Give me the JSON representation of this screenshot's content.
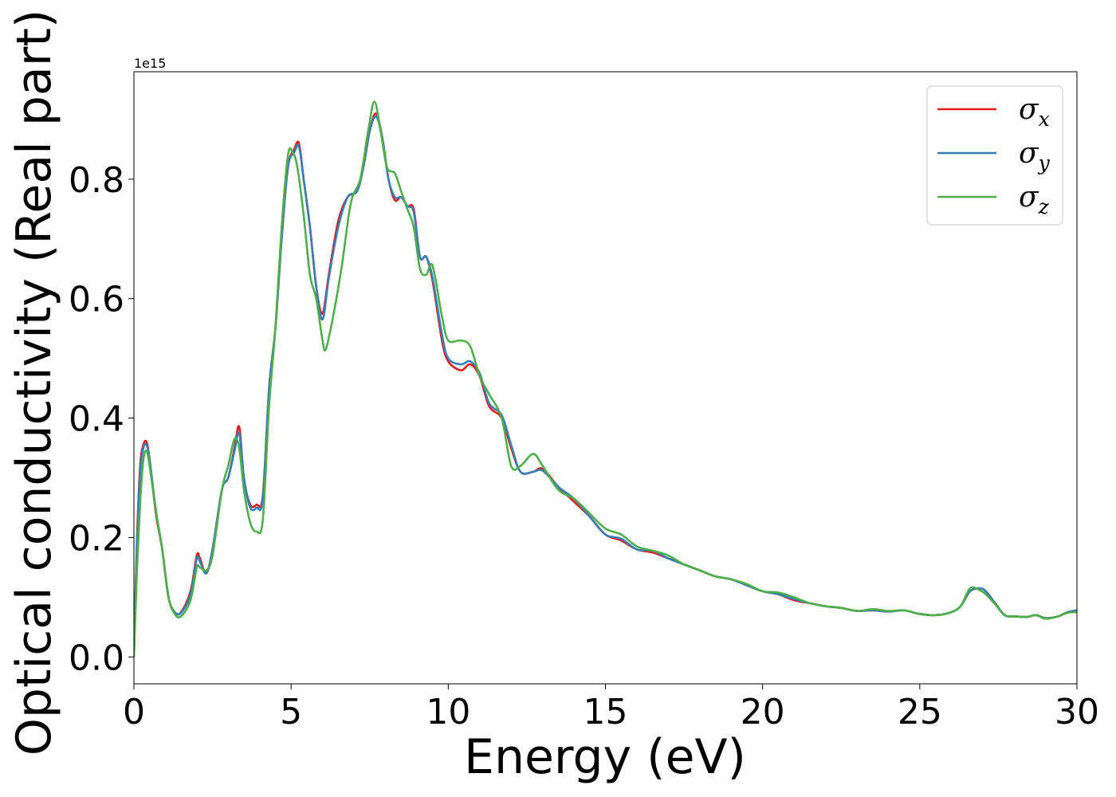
{
  "chart_data": {
    "type": "line",
    "xlabel": "Energy (eV)",
    "ylabel": "Optical conductivity (Real part)",
    "y_offset_label": "1e15",
    "xlim": [
      0,
      30
    ],
    "ylim": [
      -0.045,
      0.98
    ],
    "x_ticks": [
      0,
      5,
      10,
      15,
      20,
      25,
      30
    ],
    "x_tick_labels": [
      "0",
      "5",
      "10",
      "15",
      "20",
      "25",
      "30"
    ],
    "y_ticks": [
      0.0,
      0.2,
      0.4,
      0.6,
      0.8
    ],
    "y_tick_labels": [
      "0.0",
      "0.2",
      "0.4",
      "0.6",
      "0.8"
    ],
    "grid": false,
    "legend_position": "top-right",
    "series": [
      {
        "name": "σx",
        "legend_base": "σ",
        "legend_sub": "x",
        "color": "#e41a1c",
        "x": [
          0,
          0.1,
          0.2,
          0.3,
          0.4,
          0.5,
          0.7,
          0.9,
          1.1,
          1.3,
          1.5,
          1.8,
          2.0,
          2.1,
          2.3,
          2.5,
          2.8,
          3.0,
          3.2,
          3.35,
          3.5,
          3.7,
          3.9,
          4.1,
          4.3,
          4.5,
          4.7,
          4.9,
          5.1,
          5.25,
          5.4,
          5.6,
          5.8,
          6.0,
          6.2,
          6.5,
          6.8,
          7.1,
          7.3,
          7.5,
          7.7,
          7.9,
          8.1,
          8.3,
          8.5,
          8.7,
          8.9,
          9.1,
          9.3,
          9.5,
          9.8,
          10.0,
          10.4,
          10.7,
          11.0,
          11.3,
          11.7,
          12.0,
          12.3,
          12.7,
          13.0,
          13.5,
          14.0,
          14.5,
          15.0,
          15.5,
          16.0,
          16.5,
          17.0,
          17.5,
          18.0,
          18.5,
          19.0,
          19.5,
          20.0,
          20.5,
          21.0,
          21.5,
          22.0,
          22.5,
          23.0,
          23.5,
          24.0,
          24.5,
          25.0,
          25.5,
          26.0,
          26.3,
          26.6,
          26.9,
          27.1,
          27.4,
          27.7,
          28.0,
          28.4,
          28.7,
          29.0,
          29.4,
          29.7,
          30.0
        ],
        "values": [
          0.0,
          0.2,
          0.32,
          0.355,
          0.36,
          0.33,
          0.24,
          0.18,
          0.1,
          0.075,
          0.075,
          0.11,
          0.17,
          0.165,
          0.14,
          0.18,
          0.28,
          0.3,
          0.35,
          0.385,
          0.3,
          0.255,
          0.255,
          0.27,
          0.45,
          0.55,
          0.7,
          0.82,
          0.85,
          0.86,
          0.8,
          0.72,
          0.62,
          0.575,
          0.64,
          0.73,
          0.77,
          0.78,
          0.82,
          0.88,
          0.91,
          0.87,
          0.8,
          0.765,
          0.77,
          0.755,
          0.75,
          0.67,
          0.67,
          0.63,
          0.53,
          0.495,
          0.48,
          0.49,
          0.47,
          0.42,
          0.4,
          0.35,
          0.31,
          0.31,
          0.315,
          0.285,
          0.26,
          0.235,
          0.205,
          0.195,
          0.18,
          0.175,
          0.165,
          0.155,
          0.145,
          0.135,
          0.13,
          0.12,
          0.11,
          0.105,
          0.095,
          0.09,
          0.085,
          0.082,
          0.077,
          0.078,
          0.076,
          0.078,
          0.072,
          0.07,
          0.075,
          0.085,
          0.11,
          0.115,
          0.11,
          0.09,
          0.07,
          0.068,
          0.067,
          0.07,
          0.065,
          0.068,
          0.075,
          0.078
        ]
      },
      {
        "name": "σy",
        "legend_base": "σ",
        "legend_sub": "y",
        "color": "#377eb8",
        "x": [
          0,
          0.1,
          0.2,
          0.3,
          0.4,
          0.5,
          0.7,
          0.9,
          1.1,
          1.3,
          1.5,
          1.8,
          2.0,
          2.1,
          2.3,
          2.5,
          2.8,
          3.0,
          3.2,
          3.35,
          3.5,
          3.7,
          3.9,
          4.1,
          4.3,
          4.5,
          4.7,
          4.9,
          5.1,
          5.25,
          5.4,
          5.6,
          5.8,
          6.0,
          6.2,
          6.5,
          6.8,
          7.1,
          7.3,
          7.5,
          7.7,
          7.9,
          8.1,
          8.3,
          8.5,
          8.7,
          8.9,
          9.1,
          9.3,
          9.5,
          9.8,
          10.0,
          10.4,
          10.7,
          11.0,
          11.3,
          11.7,
          12.0,
          12.3,
          12.7,
          13.0,
          13.5,
          14.0,
          14.5,
          15.0,
          15.5,
          16.0,
          16.5,
          17.0,
          17.5,
          18.0,
          18.5,
          19.0,
          19.5,
          20.0,
          20.5,
          21.0,
          21.5,
          22.0,
          22.5,
          23.0,
          23.5,
          24.0,
          24.5,
          25.0,
          25.5,
          26.0,
          26.3,
          26.6,
          26.9,
          27.1,
          27.4,
          27.7,
          28.0,
          28.4,
          28.7,
          29.0,
          29.4,
          29.7,
          30.0
        ],
        "values": [
          0.0,
          0.19,
          0.31,
          0.35,
          0.355,
          0.33,
          0.245,
          0.18,
          0.1,
          0.075,
          0.074,
          0.105,
          0.165,
          0.16,
          0.14,
          0.18,
          0.28,
          0.3,
          0.345,
          0.375,
          0.3,
          0.25,
          0.25,
          0.265,
          0.45,
          0.55,
          0.7,
          0.82,
          0.845,
          0.855,
          0.8,
          0.72,
          0.62,
          0.565,
          0.635,
          0.72,
          0.77,
          0.78,
          0.82,
          0.88,
          0.905,
          0.87,
          0.8,
          0.77,
          0.77,
          0.755,
          0.745,
          0.67,
          0.67,
          0.635,
          0.54,
          0.5,
          0.49,
          0.495,
          0.475,
          0.425,
          0.405,
          0.355,
          0.31,
          0.31,
          0.312,
          0.285,
          0.265,
          0.235,
          0.205,
          0.198,
          0.18,
          0.178,
          0.165,
          0.155,
          0.145,
          0.135,
          0.13,
          0.12,
          0.11,
          0.105,
          0.097,
          0.09,
          0.085,
          0.082,
          0.077,
          0.078,
          0.076,
          0.078,
          0.072,
          0.07,
          0.075,
          0.085,
          0.11,
          0.115,
          0.11,
          0.09,
          0.07,
          0.068,
          0.067,
          0.07,
          0.065,
          0.068,
          0.075,
          0.078
        ]
      },
      {
        "name": "σz",
        "legend_base": "σ",
        "legend_sub": "z",
        "color": "#4daf4a",
        "x": [
          0,
          0.1,
          0.2,
          0.3,
          0.4,
          0.5,
          0.7,
          0.9,
          1.1,
          1.3,
          1.5,
          1.8,
          2.0,
          2.1,
          2.3,
          2.5,
          2.8,
          3.0,
          3.2,
          3.35,
          3.5,
          3.7,
          3.9,
          4.1,
          4.3,
          4.5,
          4.7,
          4.9,
          5.05,
          5.2,
          5.4,
          5.6,
          5.8,
          6.0,
          6.1,
          6.3,
          6.6,
          6.9,
          7.2,
          7.45,
          7.65,
          7.85,
          8.05,
          8.3,
          8.5,
          8.7,
          8.9,
          9.1,
          9.3,
          9.5,
          9.8,
          10.0,
          10.4,
          10.7,
          11.0,
          11.3,
          11.7,
          12.0,
          12.3,
          12.7,
          13.0,
          13.5,
          14.0,
          14.5,
          15.0,
          15.5,
          16.0,
          16.5,
          17.0,
          17.5,
          18.0,
          18.5,
          19.0,
          19.5,
          20.0,
          20.5,
          21.0,
          21.5,
          22.0,
          22.5,
          23.0,
          23.5,
          24.0,
          24.5,
          25.0,
          25.5,
          26.0,
          26.3,
          26.6,
          26.9,
          27.1,
          27.4,
          27.7,
          28.0,
          28.4,
          28.7,
          29.0,
          29.4,
          29.7,
          30.0
        ],
        "values": [
          0.0,
          0.15,
          0.26,
          0.33,
          0.345,
          0.32,
          0.245,
          0.18,
          0.1,
          0.072,
          0.068,
          0.095,
          0.15,
          0.15,
          0.145,
          0.17,
          0.28,
          0.32,
          0.365,
          0.35,
          0.28,
          0.225,
          0.21,
          0.23,
          0.42,
          0.55,
          0.72,
          0.84,
          0.845,
          0.82,
          0.74,
          0.64,
          0.6,
          0.53,
          0.515,
          0.56,
          0.65,
          0.76,
          0.8,
          0.88,
          0.93,
          0.88,
          0.82,
          0.81,
          0.78,
          0.75,
          0.72,
          0.65,
          0.64,
          0.655,
          0.57,
          0.53,
          0.53,
          0.52,
          0.47,
          0.44,
          0.4,
          0.32,
          0.32,
          0.34,
          0.32,
          0.28,
          0.265,
          0.24,
          0.215,
          0.205,
          0.185,
          0.178,
          0.17,
          0.155,
          0.145,
          0.135,
          0.13,
          0.122,
          0.11,
          0.108,
          0.1,
          0.09,
          0.085,
          0.082,
          0.077,
          0.08,
          0.077,
          0.078,
          0.072,
          0.07,
          0.075,
          0.085,
          0.115,
          0.112,
          0.105,
          0.088,
          0.07,
          0.068,
          0.067,
          0.07,
          0.064,
          0.068,
          0.074,
          0.075
        ]
      }
    ]
  }
}
